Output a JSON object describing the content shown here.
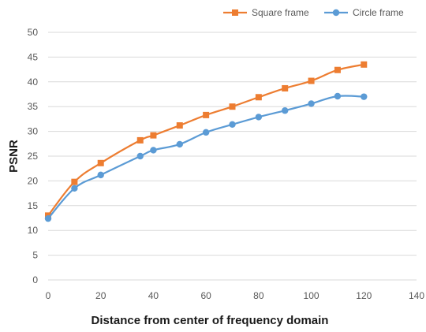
{
  "chart_data": {
    "type": "line",
    "title": "",
    "xlabel": "Distance from center of frequency domain",
    "ylabel": "PSNR",
    "xlim": [
      0,
      140
    ],
    "ylim": [
      0,
      50
    ],
    "xticks": [
      0,
      20,
      40,
      60,
      80,
      100,
      120,
      140
    ],
    "yticks": [
      0,
      5,
      10,
      15,
      20,
      25,
      30,
      35,
      40,
      45,
      50
    ],
    "grid": "horizontal",
    "legend_position": "top-right",
    "series": [
      {
        "name": "Square frame",
        "color": "#ED7D31",
        "marker": "square",
        "x": [
          0,
          10,
          20,
          35,
          40,
          50,
          60,
          70,
          80,
          90,
          100,
          110,
          120
        ],
        "y": [
          13.0,
          19.8,
          23.6,
          28.2,
          29.2,
          31.2,
          33.3,
          35.0,
          36.9,
          38.7,
          40.2,
          42.4,
          43.5
        ]
      },
      {
        "name": "Circle frame",
        "color": "#5B9BD5",
        "marker": "circle",
        "x": [
          0,
          10,
          20,
          35,
          40,
          50,
          60,
          70,
          80,
          90,
          100,
          110,
          120
        ],
        "y": [
          12.4,
          18.5,
          21.2,
          25.0,
          26.2,
          27.4,
          29.8,
          31.4,
          32.9,
          34.2,
          35.6,
          37.1,
          37.0
        ]
      }
    ]
  }
}
